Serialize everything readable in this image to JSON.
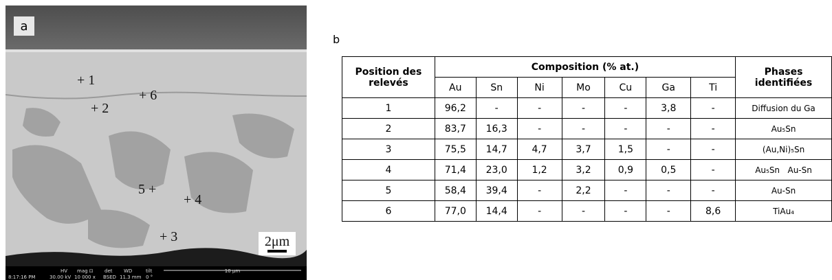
{
  "panel_a": {
    "label": "a",
    "points": [
      "+ 1",
      "+ 2",
      "+ 6",
      "5 +",
      "+ 4",
      "+ 3"
    ],
    "scale": "2μm",
    "footer": {
      "time": "8:17:16 PM",
      "hv_label": "HV",
      "hv": "30.00 kV",
      "mag_label": "mag ⊡",
      "mag": "10 000 x",
      "det_label": "det",
      "det": "BSED",
      "wd_label": "WD",
      "wd": "11.3 mm",
      "tilt_label": "tilt",
      "tilt": "0 °",
      "bar": "10 μm"
    }
  },
  "panel_b": {
    "label": "b",
    "table": {
      "header": {
        "position": "Position des relevés",
        "composition": "Composition (% at.)",
        "phases": "Phases identifiées"
      },
      "elements": [
        "Au",
        "Sn",
        "Ni",
        "Mo",
        "Cu",
        "Ga",
        "Ti"
      ],
      "rows": [
        [
          "1",
          "96,2",
          "-",
          "-",
          "-",
          "-",
          "3,8",
          "-",
          "Diffusion du Ga"
        ],
        [
          "2",
          "83,7",
          "16,3",
          "-",
          "-",
          "-",
          "-",
          "-",
          "Au₅Sn"
        ],
        [
          "3",
          "75,5",
          "14,7",
          "4,7",
          "3,7",
          "1,5",
          "-",
          "-",
          "(Au,Ni)₅Sn"
        ],
        [
          "4",
          "71,4",
          "23,0",
          "1,2",
          "3,2",
          "0,9",
          "0,5",
          "-",
          "Au₅Sn   Au-Sn"
        ],
        [
          "5",
          "58,4",
          "39,4",
          "-",
          "2,2",
          "-",
          "-",
          "-",
          "Au-Sn"
        ],
        [
          "6",
          "77,0",
          "14,4",
          "-",
          "-",
          "-",
          "-",
          "8,6",
          "TiAu₄"
        ]
      ]
    }
  }
}
